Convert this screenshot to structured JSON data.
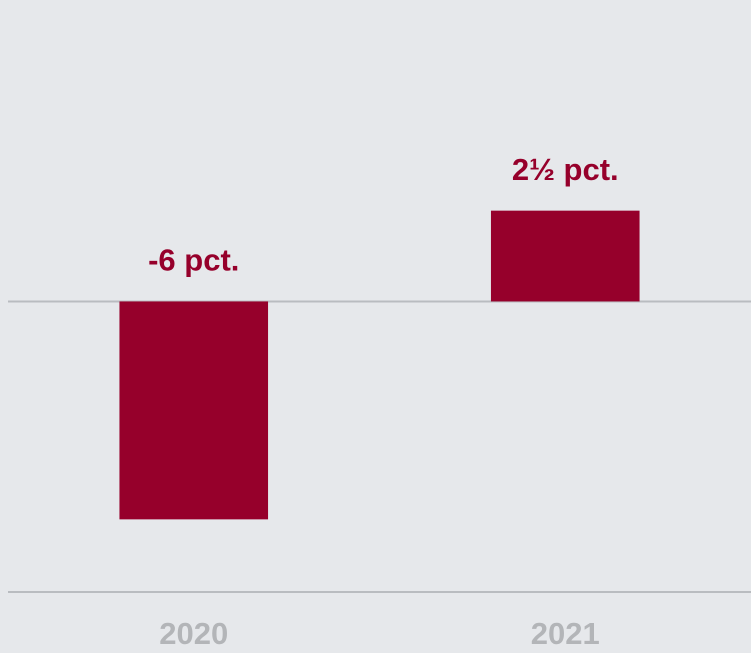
{
  "chart_data": {
    "type": "bar",
    "categories": [
      "2020",
      "2021"
    ],
    "values": [
      -6,
      2.5
    ],
    "value_labels": [
      "-6 pct.",
      "2½ pct."
    ],
    "color": "#96002b",
    "ylim": [
      -8,
      8.3
    ]
  }
}
